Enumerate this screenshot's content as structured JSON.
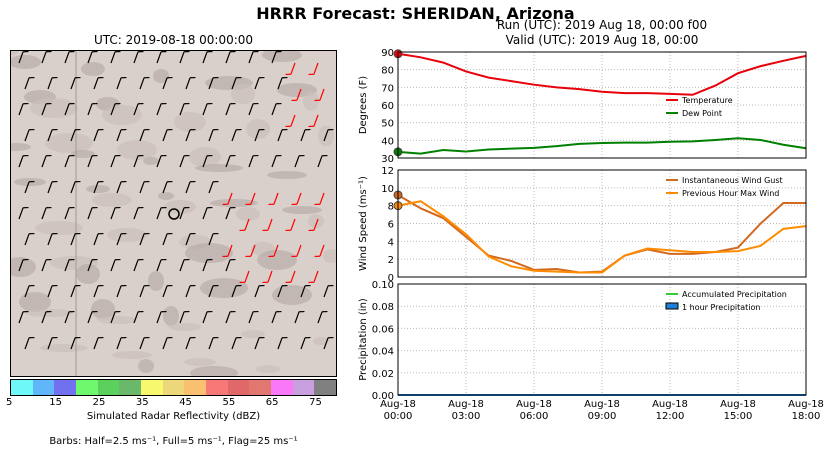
{
  "header": {
    "main_title": "HRRR Forecast: SHERIDAN, Arizona",
    "map_title": "UTC: 2019-08-18 00:00:00",
    "run_line": "Run (UTC): 2019 Aug 18, 00:00 f00",
    "valid_line": "Valid (UTC): 2019 Aug 18, 00:00"
  },
  "colorbar": {
    "label": "Simulated Radar Reflectivity (dBZ)",
    "tick_labels": [
      "5",
      "15",
      "25",
      "35",
      "45",
      "55",
      "65",
      "75"
    ],
    "colors": [
      "#6ff8f8",
      "#60b6f8",
      "#7070f0",
      "#6ef86e",
      "#5cd05c",
      "#6ab86a",
      "#f8f86e",
      "#ecd77a",
      "#f8c070",
      "#f87878",
      "#e06868",
      "#e07870",
      "#f878f8",
      "#c8a0e0",
      "#808080"
    ]
  },
  "barb_note": "Barbs: Half=2.5 ms⁻¹, Full=5 ms⁻¹, Flag=25 ms⁻¹",
  "chart_data": [
    {
      "type": "line",
      "panel": "temperature",
      "ylabel": "Degrees (F)",
      "ylim": [
        30,
        90
      ],
      "yticks": [
        "30",
        "40",
        "50",
        "60",
        "70",
        "80",
        "90"
      ],
      "x": [
        "00:00",
        "01:00",
        "02:00",
        "03:00",
        "04:00",
        "05:00",
        "06:00",
        "07:00",
        "08:00",
        "09:00",
        "10:00",
        "11:00",
        "12:00",
        "13:00",
        "14:00",
        "15:00",
        "16:00",
        "17:00",
        "18:00"
      ],
      "series": [
        {
          "name": "Temperature",
          "color": "#e8000b",
          "values": [
            89,
            87,
            84,
            79,
            75.5,
            73.5,
            71.5,
            70,
            69,
            67.5,
            66.7,
            66.7,
            66.3,
            65.8,
            71,
            78,
            82,
            85,
            87.8
          ]
        },
        {
          "name": "Dew Point",
          "color": "#008000",
          "values": [
            33.5,
            32.5,
            34.5,
            33.7,
            34.8,
            35.3,
            35.7,
            36.7,
            38,
            38.5,
            38.7,
            38.7,
            39.2,
            39.4,
            40.2,
            41.2,
            40.2,
            37.5,
            35.5
          ]
        }
      ],
      "legend": "right"
    },
    {
      "type": "line",
      "panel": "wind",
      "ylabel": "Wind Speed (ms⁻¹)",
      "ylim": [
        0,
        12
      ],
      "yticks": [
        "0",
        "2",
        "4",
        "6",
        "8",
        "10",
        "12"
      ],
      "x": [
        "00:00",
        "01:00",
        "02:00",
        "03:00",
        "04:00",
        "05:00",
        "06:00",
        "07:00",
        "08:00",
        "09:00",
        "10:00",
        "11:00",
        "12:00",
        "13:00",
        "14:00",
        "15:00",
        "16:00",
        "17:00",
        "18:00"
      ],
      "series": [
        {
          "name": "Instantaneous Wind Gust",
          "color": "#d2691e",
          "values": [
            9.2,
            7.7,
            6.6,
            4.5,
            2.4,
            1.8,
            0.8,
            0.9,
            0.5,
            0.6,
            2.4,
            3.1,
            2.6,
            2.6,
            2.8,
            3.3,
            6.0,
            8.3,
            8.3
          ]
        },
        {
          "name": "Previous Hour Max Wind",
          "color": "#ff8c00",
          "values": [
            8.0,
            8.5,
            6.8,
            4.8,
            2.3,
            1.2,
            0.7,
            0.6,
            0.5,
            0.5,
            2.4,
            3.2,
            3.0,
            2.8,
            2.8,
            2.9,
            3.5,
            5.4,
            5.7
          ]
        }
      ],
      "legend": "top-right"
    },
    {
      "type": "line",
      "panel": "precipitation",
      "ylabel": "Precipitation (in)",
      "ylim": [
        0,
        0.1
      ],
      "yticks": [
        "0.00",
        "0.02",
        "0.04",
        "0.06",
        "0.08",
        "0.10"
      ],
      "xtick_labels": [
        [
          "Aug-18",
          "00:00"
        ],
        [
          "Aug-18",
          "03:00"
        ],
        [
          "Aug-18",
          "06:00"
        ],
        [
          "Aug-18",
          "09:00"
        ],
        [
          "Aug-18",
          "12:00"
        ],
        [
          "Aug-18",
          "15:00"
        ],
        [
          "Aug-18",
          "18:00"
        ]
      ],
      "series": [
        {
          "name": "Accumulated Precipitation",
          "color": "#32cd32",
          "values": [
            0,
            0,
            0,
            0,
            0,
            0,
            0,
            0,
            0,
            0,
            0,
            0,
            0,
            0,
            0,
            0,
            0,
            0,
            0
          ]
        },
        {
          "name": "1 hour Precipitation",
          "color": "#1e7fd8",
          "values": [
            0,
            0,
            0,
            0,
            0,
            0,
            0,
            0,
            0,
            0,
            0,
            0,
            0,
            0,
            0,
            0,
            0,
            0,
            0
          ]
        }
      ],
      "legend": "top-right"
    }
  ]
}
